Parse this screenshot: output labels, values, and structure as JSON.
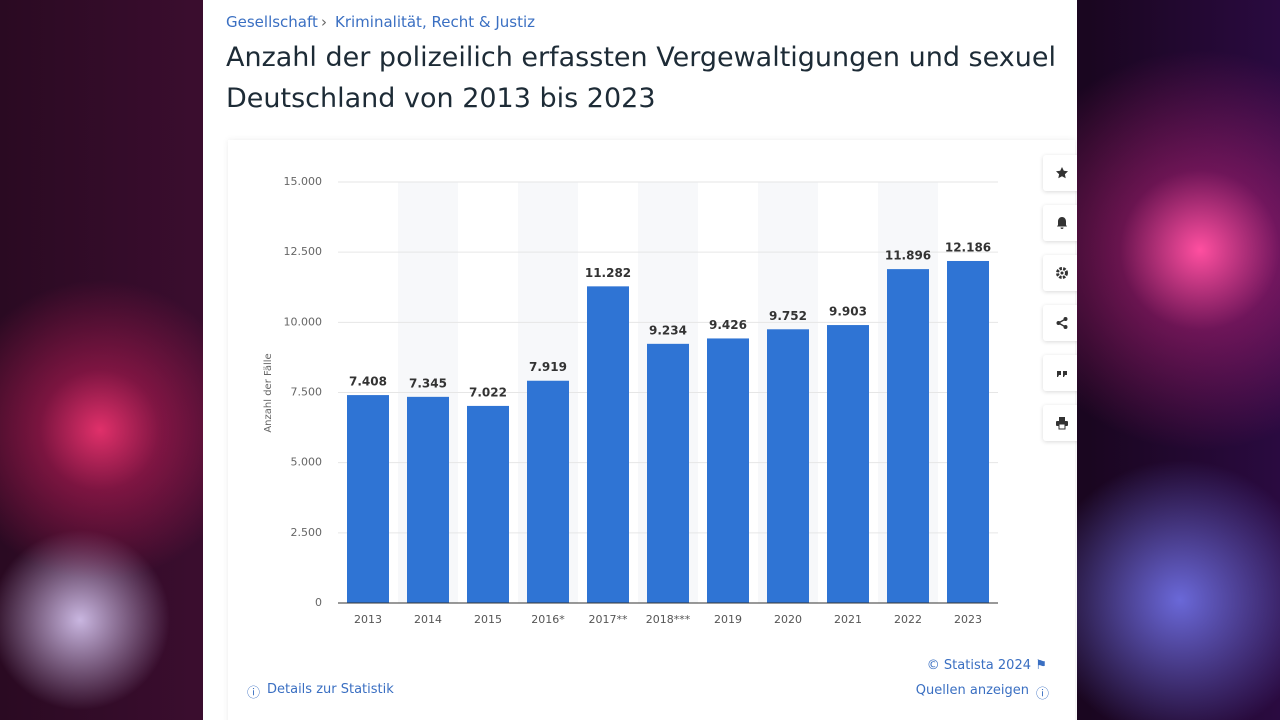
{
  "breadcrumb": [
    "Gesellschaft",
    "Kriminalität, Recht & Justiz"
  ],
  "title_lines": [
    "Anzahl der polizeilich erfassten Vergewaltigungen und sexuel",
    "Deutschland von 2013 bis 2023"
  ],
  "chart_data": {
    "type": "bar",
    "y_label": "Anzahl der Fälle",
    "categories": [
      "2013",
      "2014",
      "2015",
      "2016*",
      "2017**",
      "2018***",
      "2019",
      "2020",
      "2021",
      "2022",
      "2023"
    ],
    "values": [
      7408,
      7345,
      7022,
      7919,
      11282,
      9234,
      9426,
      9752,
      9903,
      11896,
      12186
    ],
    "value_labels": [
      "7.408",
      "7.345",
      "7.022",
      "7.919",
      "11.282",
      "9.234",
      "9.426",
      "9.752",
      "9.903",
      "11.896",
      "12.186"
    ],
    "color": "#2f74d4",
    "ylim": [
      0,
      15000
    ],
    "yticks": [
      0,
      {
        "value": 2500,
        "label": "2.500"
      },
      {
        "value": 5000,
        "label": "5.000"
      },
      {
        "value": 7500,
        "label": "7.500"
      },
      {
        "value": 10000,
        "label": "10.000"
      },
      {
        "value": 12500,
        "label": "12.500"
      },
      {
        "value": 15000,
        "label": "15.000"
      }
    ],
    "grid": true
  },
  "footer": {
    "copyright": "© Statista 2024",
    "details": "Details zur Statistik",
    "sources": "Quellen anzeigen"
  }
}
